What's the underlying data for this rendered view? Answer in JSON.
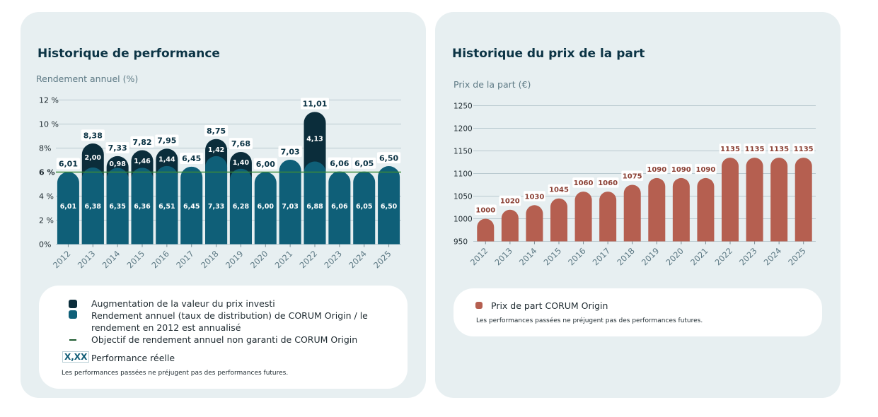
{
  "colors": {
    "teal": "#0f5f78",
    "dark": "#0b2d3b",
    "objective": "#3a8a3a",
    "brick": "#b55f50"
  },
  "left": {
    "title": "Historique de performance",
    "axis_title": "Rendement annuel (%)",
    "legend": {
      "items": [
        "Augmentation de la valeur du prix investi",
        "Rendement annuel (taux de distribution) de CORUM Origin / le",
        "rendement en 2012 est annualisé",
        "Objectif de rendement annuel non garanti de CORUM Origin"
      ],
      "perf_tag": "X,XX",
      "perf_label": "Performance réelle",
      "disclaimer": "Les performances passées ne préjugent pas des performances futures."
    }
  },
  "right": {
    "title": "Historique du prix de la part",
    "axis_title": "Prix de la part (€)",
    "legend": {
      "item": "Prix de part CORUM Origin",
      "disclaimer": "Les performances passées ne préjugent pas des performances futures."
    }
  },
  "chart_data": [
    {
      "type": "bar",
      "stacked": true,
      "title": "Historique de performance",
      "ylabel": "Rendement annuel (%)",
      "categories": [
        "2012",
        "2013",
        "2014",
        "2015",
        "2016",
        "2017",
        "2018",
        "2019",
        "2020",
        "2021",
        "2022",
        "2023",
        "2024",
        "2025"
      ],
      "series": [
        {
          "name": "Rendement annuel (taux de distribution) de CORUM Origin",
          "values": [
            6.01,
            6.38,
            6.35,
            6.36,
            6.51,
            6.45,
            7.33,
            6.28,
            6.0,
            7.03,
            6.88,
            6.06,
            6.05,
            6.5
          ]
        },
        {
          "name": "Augmentation de la valeur du prix investi",
          "values": [
            0,
            2.0,
            0.98,
            1.46,
            1.44,
            0,
            1.42,
            1.4,
            0,
            0,
            4.13,
            0,
            0,
            0
          ]
        }
      ],
      "totals": [
        6.01,
        8.38,
        7.33,
        7.82,
        7.95,
        6.45,
        8.75,
        7.68,
        6.0,
        7.03,
        11.01,
        6.06,
        6.05,
        6.5
      ],
      "objective": 6,
      "objective_label": "6 %",
      "ylim": [
        0,
        12
      ],
      "yticks": [
        0,
        2,
        4,
        6,
        8,
        10,
        12
      ],
      "ytick_labels": [
        "0%",
        "2 %",
        "4 %",
        "6 %",
        "8%",
        "10 %",
        "12 %"
      ]
    },
    {
      "type": "bar",
      "title": "Historique du prix de la part",
      "ylabel": "Prix de la part (€)",
      "categories": [
        "2012",
        "2013",
        "2014",
        "2015",
        "2016",
        "2017",
        "2018",
        "2019",
        "2020",
        "2021",
        "2022",
        "2023",
        "2024",
        "2025"
      ],
      "series": [
        {
          "name": "Prix de part CORUM Origin",
          "values": [
            1000,
            1020,
            1030,
            1045,
            1060,
            1060,
            1075,
            1090,
            1090,
            1090,
            1135,
            1135,
            1135,
            1135
          ]
        }
      ],
      "ylim": [
        950,
        1250
      ],
      "yticks": [
        950,
        1000,
        1050,
        1100,
        1150,
        1200,
        1250
      ]
    }
  ]
}
